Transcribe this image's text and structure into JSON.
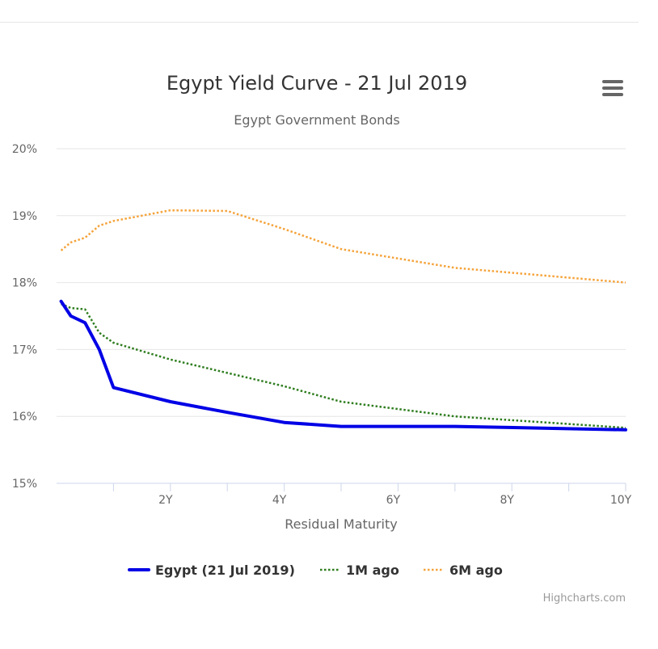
{
  "chart_data": {
    "type": "line",
    "title": "Egypt Yield Curve - 21 Jul 2019",
    "subtitle": "Egypt Government Bonds",
    "xlabel": "Residual Maturity",
    "ylabel": "",
    "xlim": [
      0,
      10
    ],
    "ylim": [
      15,
      20
    ],
    "y_ticks": [
      15,
      16,
      17,
      18,
      19,
      20
    ],
    "y_tick_labels": [
      "15%",
      "16%",
      "17%",
      "18%",
      "19%",
      "20%"
    ],
    "x_minor_ticks": [
      1,
      3,
      5,
      7,
      9
    ],
    "x_ticks": [
      2,
      4,
      6,
      8,
      10
    ],
    "x_tick_labels": [
      "2Y",
      "4Y",
      "6Y",
      "8Y",
      "10Y"
    ],
    "grid": true,
    "legend_position": "bottom-center",
    "series": [
      {
        "name": "Egypt (21 Jul 2019)",
        "color": "#0000e6",
        "style": "solid",
        "x": [
          0.08,
          0.25,
          0.5,
          0.75,
          1.0,
          2.0,
          3.0,
          4.0,
          5.0,
          7.0,
          10.0
        ],
        "y": [
          17.72,
          17.5,
          17.4,
          17.0,
          16.43,
          16.22,
          16.06,
          15.91,
          15.85,
          15.85,
          15.8
        ]
      },
      {
        "name": "1M ago",
        "color": "#2e7d1e",
        "style": "dotted",
        "x": [
          0.08,
          0.25,
          0.5,
          0.75,
          1.0,
          2.0,
          3.0,
          4.0,
          5.0,
          7.0,
          10.0
        ],
        "y": [
          17.68,
          17.62,
          17.6,
          17.25,
          17.1,
          16.85,
          16.65,
          16.45,
          16.22,
          16.0,
          15.83
        ]
      },
      {
        "name": "6M ago",
        "color": "#f5a33a",
        "style": "dotted",
        "x": [
          0.08,
          0.25,
          0.5,
          0.75,
          1.0,
          2.0,
          3.0,
          4.0,
          5.0,
          7.0,
          10.0
        ],
        "y": [
          18.48,
          18.6,
          18.67,
          18.85,
          18.92,
          19.08,
          19.07,
          18.8,
          18.5,
          18.22,
          18.0
        ]
      }
    ]
  },
  "credits": "Highcharts.com",
  "menu_icon": "hamburger-menu-icon"
}
